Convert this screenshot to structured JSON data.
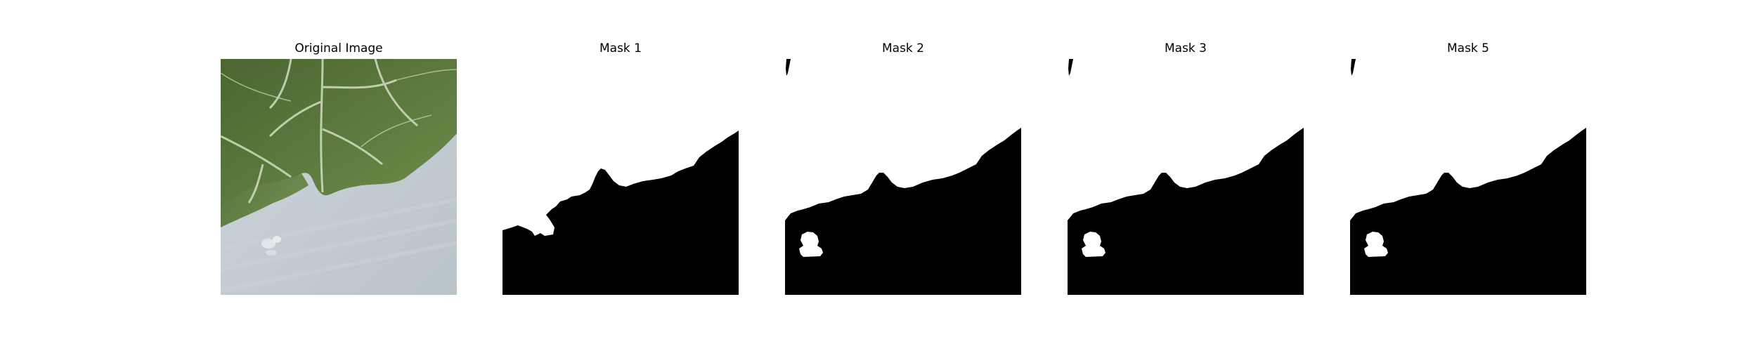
{
  "panels": [
    {
      "title": "Original Image",
      "kind": "photo",
      "subject": "green leaves over pale grey-blue surface"
    },
    {
      "title": "Mask 1",
      "kind": "mask"
    },
    {
      "title": "Mask 2",
      "kind": "mask"
    },
    {
      "title": "Mask 3",
      "kind": "mask"
    },
    {
      "title": "Mask 5",
      "kind": "mask"
    }
  ],
  "colors": {
    "background": "#ffffff",
    "mask_foreground": "#ffffff",
    "mask_background": "#000000",
    "leaf_dark": "#3f5a2b",
    "leaf_mid": "#5d7a3c",
    "leaf_light": "#7e9a57",
    "vein": "#d9dfc4",
    "surface": "#c4ccd2"
  }
}
